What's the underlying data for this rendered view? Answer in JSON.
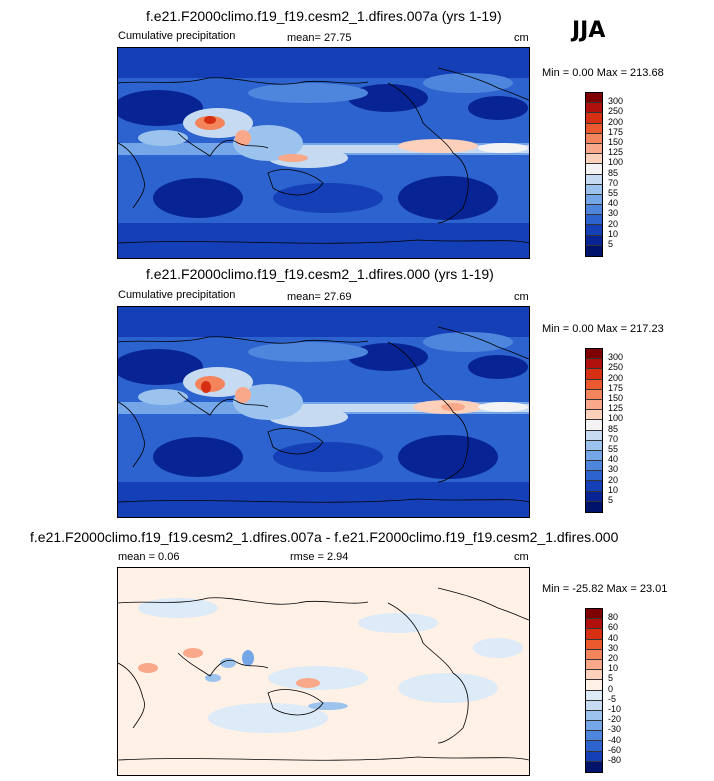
{
  "season": "JJA",
  "panels": [
    {
      "title": "f.e21.F2000climo.f19_f19.cesm2_1.dfires.007a (yrs 1-19)",
      "left_label": "Cumulative precipitation",
      "center_label": "mean=  27.75",
      "units": "cm",
      "minmax": "Min =   0.00 Max = 213.68"
    },
    {
      "title": "f.e21.F2000climo.f19_f19.cesm2_1.dfires.000 (yrs 1-19)",
      "left_label": "Cumulative precipitation",
      "center_label": "mean=  27.69",
      "units": "cm",
      "minmax": "Min =   0.00 Max = 217.23"
    },
    {
      "title": "f.e21.F2000climo.f19_f19.cesm2_1.dfires.007a - f.e21.F2000climo.f19_f19.cesm2_1.dfires.000",
      "left_label": "mean =   0.06",
      "center_label": "rmse =   2.94",
      "units": "cm",
      "minmax": "Min = -25.82 Max =  23.01"
    }
  ],
  "chart_data": [
    {
      "type": "heatmap",
      "title": "f.e21.F2000climo.f19_f19.cesm2_1.dfires.007a (yrs 1-19)",
      "variable": "Cumulative precipitation",
      "units": "cm",
      "mean": 27.75,
      "min": 0.0,
      "max": 213.68,
      "colorbar_levels": [
        "300",
        "250",
        "200",
        "175",
        "150",
        "125",
        "100",
        "85",
        "70",
        "55",
        "40",
        "30",
        "20",
        "10",
        "5"
      ],
      "colorbar_colors": [
        "#7f0000",
        "#b0110c",
        "#d62f12",
        "#eb5a2e",
        "#f4845c",
        "#f9a98a",
        "#fcd0bb",
        "#f3f3f3",
        "#c6dbf2",
        "#9cc3ee",
        "#74a6e8",
        "#4f86dd",
        "#2d63ce",
        "#143fb6",
        "#082494",
        "#00136b"
      ]
    },
    {
      "type": "heatmap",
      "title": "f.e21.F2000climo.f19_f19.cesm2_1.dfires.000 (yrs 1-19)",
      "variable": "Cumulative precipitation",
      "units": "cm",
      "mean": 27.69,
      "min": 0.0,
      "max": 217.23,
      "colorbar_levels": [
        "300",
        "250",
        "200",
        "175",
        "150",
        "125",
        "100",
        "85",
        "70",
        "55",
        "40",
        "30",
        "20",
        "10",
        "5"
      ],
      "colorbar_colors": [
        "#7f0000",
        "#b0110c",
        "#d62f12",
        "#eb5a2e",
        "#f4845c",
        "#f9a98a",
        "#fcd0bb",
        "#f3f3f3",
        "#c6dbf2",
        "#9cc3ee",
        "#74a6e8",
        "#4f86dd",
        "#2d63ce",
        "#143fb6",
        "#082494",
        "#00136b"
      ]
    },
    {
      "type": "heatmap",
      "title": "f.e21.F2000climo.f19_f19.cesm2_1.dfires.007a - f.e21.F2000climo.f19_f19.cesm2_1.dfires.000",
      "units": "cm",
      "mean": 0.06,
      "rmse": 2.94,
      "min": -25.82,
      "max": 23.01,
      "colorbar_levels": [
        "80",
        "60",
        "40",
        "30",
        "20",
        "10",
        "5",
        "0",
        "-5",
        "-10",
        "-20",
        "-30",
        "-40",
        "-60",
        "-80"
      ],
      "colorbar_colors": [
        "#7f0000",
        "#b0110c",
        "#d62f12",
        "#eb5a2e",
        "#f4845c",
        "#f9a98a",
        "#fcd0bb",
        "#fff1e6",
        "#ddeaf7",
        "#c6dbf2",
        "#9cc3ee",
        "#74a6e8",
        "#4f86dd",
        "#2d63ce",
        "#143fb6",
        "#00136b"
      ]
    }
  ]
}
